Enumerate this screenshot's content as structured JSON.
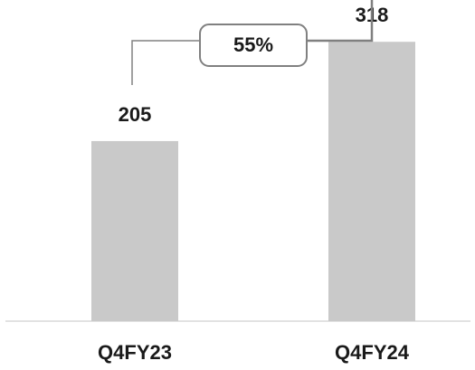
{
  "chart_data": {
    "type": "bar",
    "categories": [
      "Q4FY23",
      "Q4FY24"
    ],
    "values": [
      205,
      318
    ],
    "title": "",
    "xlabel": "",
    "ylabel": "",
    "ylim": [
      0,
      345
    ],
    "grid": false,
    "bar_color": "#c9c9c9",
    "annotation": {
      "type": "growth-arrow",
      "text": "55%",
      "from": "Q4FY23",
      "to": "Q4FY24"
    }
  }
}
